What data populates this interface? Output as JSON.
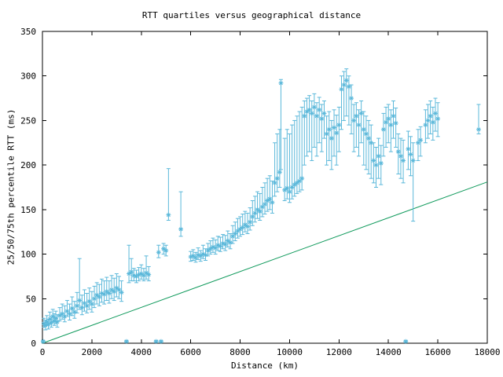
{
  "chart_data": {
    "type": "scatter",
    "marker": "asterisk-with-yerrorbars",
    "title": "RTT quartiles versus geographical distance",
    "xlabel": "Distance (km)",
    "ylabel": "25/50/75th percentile RTT (ms)",
    "xlim": [
      0,
      18000
    ],
    "ylim": [
      0,
      350
    ],
    "xticks": [
      0,
      2000,
      4000,
      6000,
      8000,
      10000,
      12000,
      14000,
      16000,
      18000
    ],
    "yticks": [
      0,
      50,
      100,
      150,
      200,
      250,
      300,
      350
    ],
    "grid": false,
    "legend": "none",
    "colors": {
      "points": "#5bb8da",
      "line": "#109a5c",
      "axis": "#000000"
    },
    "series_note": "points are [distance_km, q25_ms, median_ms, q75_ms]",
    "points": [
      [
        30,
        1,
        2,
        3
      ],
      [
        60,
        18,
        22,
        28
      ],
      [
        120,
        15,
        20,
        26
      ],
      [
        180,
        20,
        24,
        31
      ],
      [
        240,
        16,
        21,
        27
      ],
      [
        300,
        22,
        27,
        35
      ],
      [
        360,
        18,
        23,
        30
      ],
      [
        420,
        24,
        30,
        38
      ],
      [
        480,
        20,
        25,
        33
      ],
      [
        540,
        22,
        28,
        36
      ],
      [
        600,
        18,
        24,
        32
      ],
      [
        700,
        25,
        31,
        40
      ],
      [
        800,
        27,
        33,
        44
      ],
      [
        900,
        24,
        30,
        42
      ],
      [
        1000,
        30,
        36,
        48
      ],
      [
        1100,
        26,
        33,
        44
      ],
      [
        1200,
        31,
        39,
        52
      ],
      [
        1300,
        28,
        35,
        47
      ],
      [
        1400,
        34,
        42,
        57
      ],
      [
        1500,
        38,
        48,
        95
      ],
      [
        1600,
        32,
        40,
        54
      ],
      [
        1700,
        36,
        45,
        60
      ],
      [
        1800,
        34,
        42,
        56
      ],
      [
        1900,
        38,
        47,
        62
      ],
      [
        2000,
        35,
        44,
        58
      ],
      [
        2100,
        40,
        50,
        64
      ],
      [
        2200,
        44,
        54,
        68
      ],
      [
        2300,
        42,
        52,
        66
      ],
      [
        2400,
        46,
        56,
        72
      ],
      [
        2500,
        44,
        55,
        70
      ],
      [
        2600,
        48,
        58,
        74
      ],
      [
        2700,
        45,
        56,
        70
      ],
      [
        2800,
        50,
        60,
        76
      ],
      [
        2900,
        48,
        58,
        73
      ],
      [
        3000,
        52,
        62,
        78
      ],
      [
        3100,
        50,
        60,
        75
      ],
      [
        3200,
        47,
        57,
        70
      ],
      [
        3400,
        1,
        2,
        3
      ],
      [
        3500,
        68,
        78,
        110
      ],
      [
        3600,
        70,
        80,
        95
      ],
      [
        3700,
        70,
        76,
        84
      ],
      [
        3800,
        68,
        75,
        82
      ],
      [
        3900,
        70,
        77,
        85
      ],
      [
        4000,
        72,
        78,
        88
      ],
      [
        4100,
        70,
        76,
        84
      ],
      [
        4200,
        72,
        79,
        98
      ],
      [
        4300,
        70,
        77,
        86
      ],
      [
        4600,
        1,
        2,
        3
      ],
      [
        4700,
        96,
        102,
        110
      ],
      [
        4800,
        1,
        2,
        3
      ],
      [
        4900,
        100,
        106,
        112
      ],
      [
        5000,
        98,
        104,
        110
      ],
      [
        5100,
        138,
        144,
        196
      ],
      [
        5600,
        120,
        128,
        170
      ],
      [
        6000,
        92,
        97,
        103
      ],
      [
        6100,
        93,
        98,
        105
      ],
      [
        6200,
        91,
        96,
        102
      ],
      [
        6300,
        94,
        99,
        107
      ],
      [
        6400,
        92,
        98,
        104
      ],
      [
        6500,
        95,
        100,
        110
      ],
      [
        6600,
        93,
        99,
        106
      ],
      [
        6700,
        98,
        104,
        112
      ],
      [
        6800,
        100,
        106,
        115
      ],
      [
        6900,
        102,
        108,
        118
      ],
      [
        7000,
        100,
        107,
        116
      ],
      [
        7100,
        104,
        110,
        120
      ],
      [
        7200,
        103,
        109,
        119
      ],
      [
        7300,
        106,
        112,
        122
      ],
      [
        7400,
        104,
        111,
        121
      ],
      [
        7500,
        108,
        115,
        126
      ],
      [
        7600,
        106,
        113,
        123
      ],
      [
        7700,
        112,
        120,
        132
      ],
      [
        7800,
        115,
        123,
        136
      ],
      [
        7900,
        118,
        126,
        140
      ],
      [
        8000,
        120,
        128,
        142
      ],
      [
        8100,
        122,
        130,
        145
      ],
      [
        8200,
        125,
        133,
        148
      ],
      [
        8300,
        123,
        131,
        146
      ],
      [
        8400,
        127,
        136,
        152
      ],
      [
        8500,
        132,
        142,
        160
      ],
      [
        8600,
        136,
        146,
        165
      ],
      [
        8700,
        140,
        150,
        170
      ],
      [
        8800,
        138,
        148,
        168
      ],
      [
        8900,
        142,
        153,
        175
      ],
      [
        9000,
        145,
        156,
        180
      ],
      [
        9100,
        148,
        160,
        185
      ],
      [
        9200,
        150,
        162,
        188
      ],
      [
        9300,
        146,
        158,
        182
      ],
      [
        9400,
        165,
        180,
        225
      ],
      [
        9500,
        170,
        185,
        235
      ],
      [
        9600,
        175,
        192,
        240
      ],
      [
        9650,
        195,
        292,
        296
      ],
      [
        9800,
        160,
        172,
        230
      ],
      [
        9900,
        162,
        174,
        240
      ],
      [
        10000,
        158,
        170,
        235
      ],
      [
        10100,
        162,
        175,
        245
      ],
      [
        10200,
        165,
        178,
        250
      ],
      [
        10300,
        168,
        180,
        255
      ],
      [
        10400,
        170,
        182,
        260
      ],
      [
        10500,
        172,
        185,
        265
      ],
      [
        10600,
        200,
        255,
        272
      ],
      [
        10700,
        210,
        260,
        275
      ],
      [
        10800,
        215,
        262,
        278
      ],
      [
        10900,
        205,
        258,
        272
      ],
      [
        11000,
        220,
        265,
        280
      ],
      [
        11100,
        210,
        255,
        270
      ],
      [
        11200,
        225,
        262,
        276
      ],
      [
        11300,
        215,
        252,
        268
      ],
      [
        11400,
        230,
        258,
        272
      ],
      [
        11500,
        200,
        235,
        255
      ],
      [
        11600,
        205,
        240,
        260
      ],
      [
        11700,
        195,
        230,
        250
      ],
      [
        11800,
        210,
        242,
        262
      ],
      [
        11900,
        200,
        236,
        256
      ],
      [
        12000,
        215,
        245,
        265
      ],
      [
        12100,
        240,
        285,
        300
      ],
      [
        12200,
        250,
        290,
        305
      ],
      [
        12300,
        255,
        295,
        308
      ],
      [
        12400,
        245,
        288,
        300
      ],
      [
        12500,
        235,
        275,
        290
      ],
      [
        12600,
        215,
        250,
        268
      ],
      [
        12700,
        220,
        255,
        270
      ],
      [
        12800,
        210,
        245,
        262
      ],
      [
        12900,
        225,
        258,
        272
      ],
      [
        13000,
        200,
        240,
        260
      ],
      [
        13100,
        195,
        235,
        255
      ],
      [
        13200,
        190,
        230,
        250
      ],
      [
        13300,
        185,
        225,
        245
      ],
      [
        13400,
        180,
        205,
        225
      ],
      [
        13500,
        175,
        200,
        220
      ],
      [
        13600,
        185,
        210,
        230
      ],
      [
        13700,
        178,
        202,
        222
      ],
      [
        13800,
        210,
        240,
        258
      ],
      [
        13900,
        220,
        248,
        265
      ],
      [
        14000,
        225,
        252,
        268
      ],
      [
        14100,
        215,
        245,
        262
      ],
      [
        14200,
        230,
        255,
        272
      ],
      [
        14300,
        220,
        247,
        264
      ],
      [
        14400,
        190,
        215,
        235
      ],
      [
        14500,
        185,
        210,
        230
      ],
      [
        14600,
        180,
        205,
        228
      ],
      [
        14700,
        1,
        2,
        3
      ],
      [
        14800,
        195,
        218,
        238
      ],
      [
        14900,
        188,
        212,
        232
      ],
      [
        15000,
        137,
        205,
        225
      ],
      [
        15200,
        205,
        225,
        240
      ],
      [
        15300,
        210,
        228,
        243
      ],
      [
        15500,
        225,
        245,
        262
      ],
      [
        15600,
        230,
        250,
        268
      ],
      [
        15700,
        235,
        255,
        272
      ],
      [
        15800,
        228,
        248,
        265
      ],
      [
        15900,
        238,
        258,
        275
      ],
      [
        16000,
        232,
        252,
        270
      ],
      [
        17650,
        235,
        240,
        268
      ]
    ],
    "line": {
      "name": "reference-line",
      "x": [
        0,
        18000
      ],
      "y": [
        0,
        181
      ]
    }
  }
}
